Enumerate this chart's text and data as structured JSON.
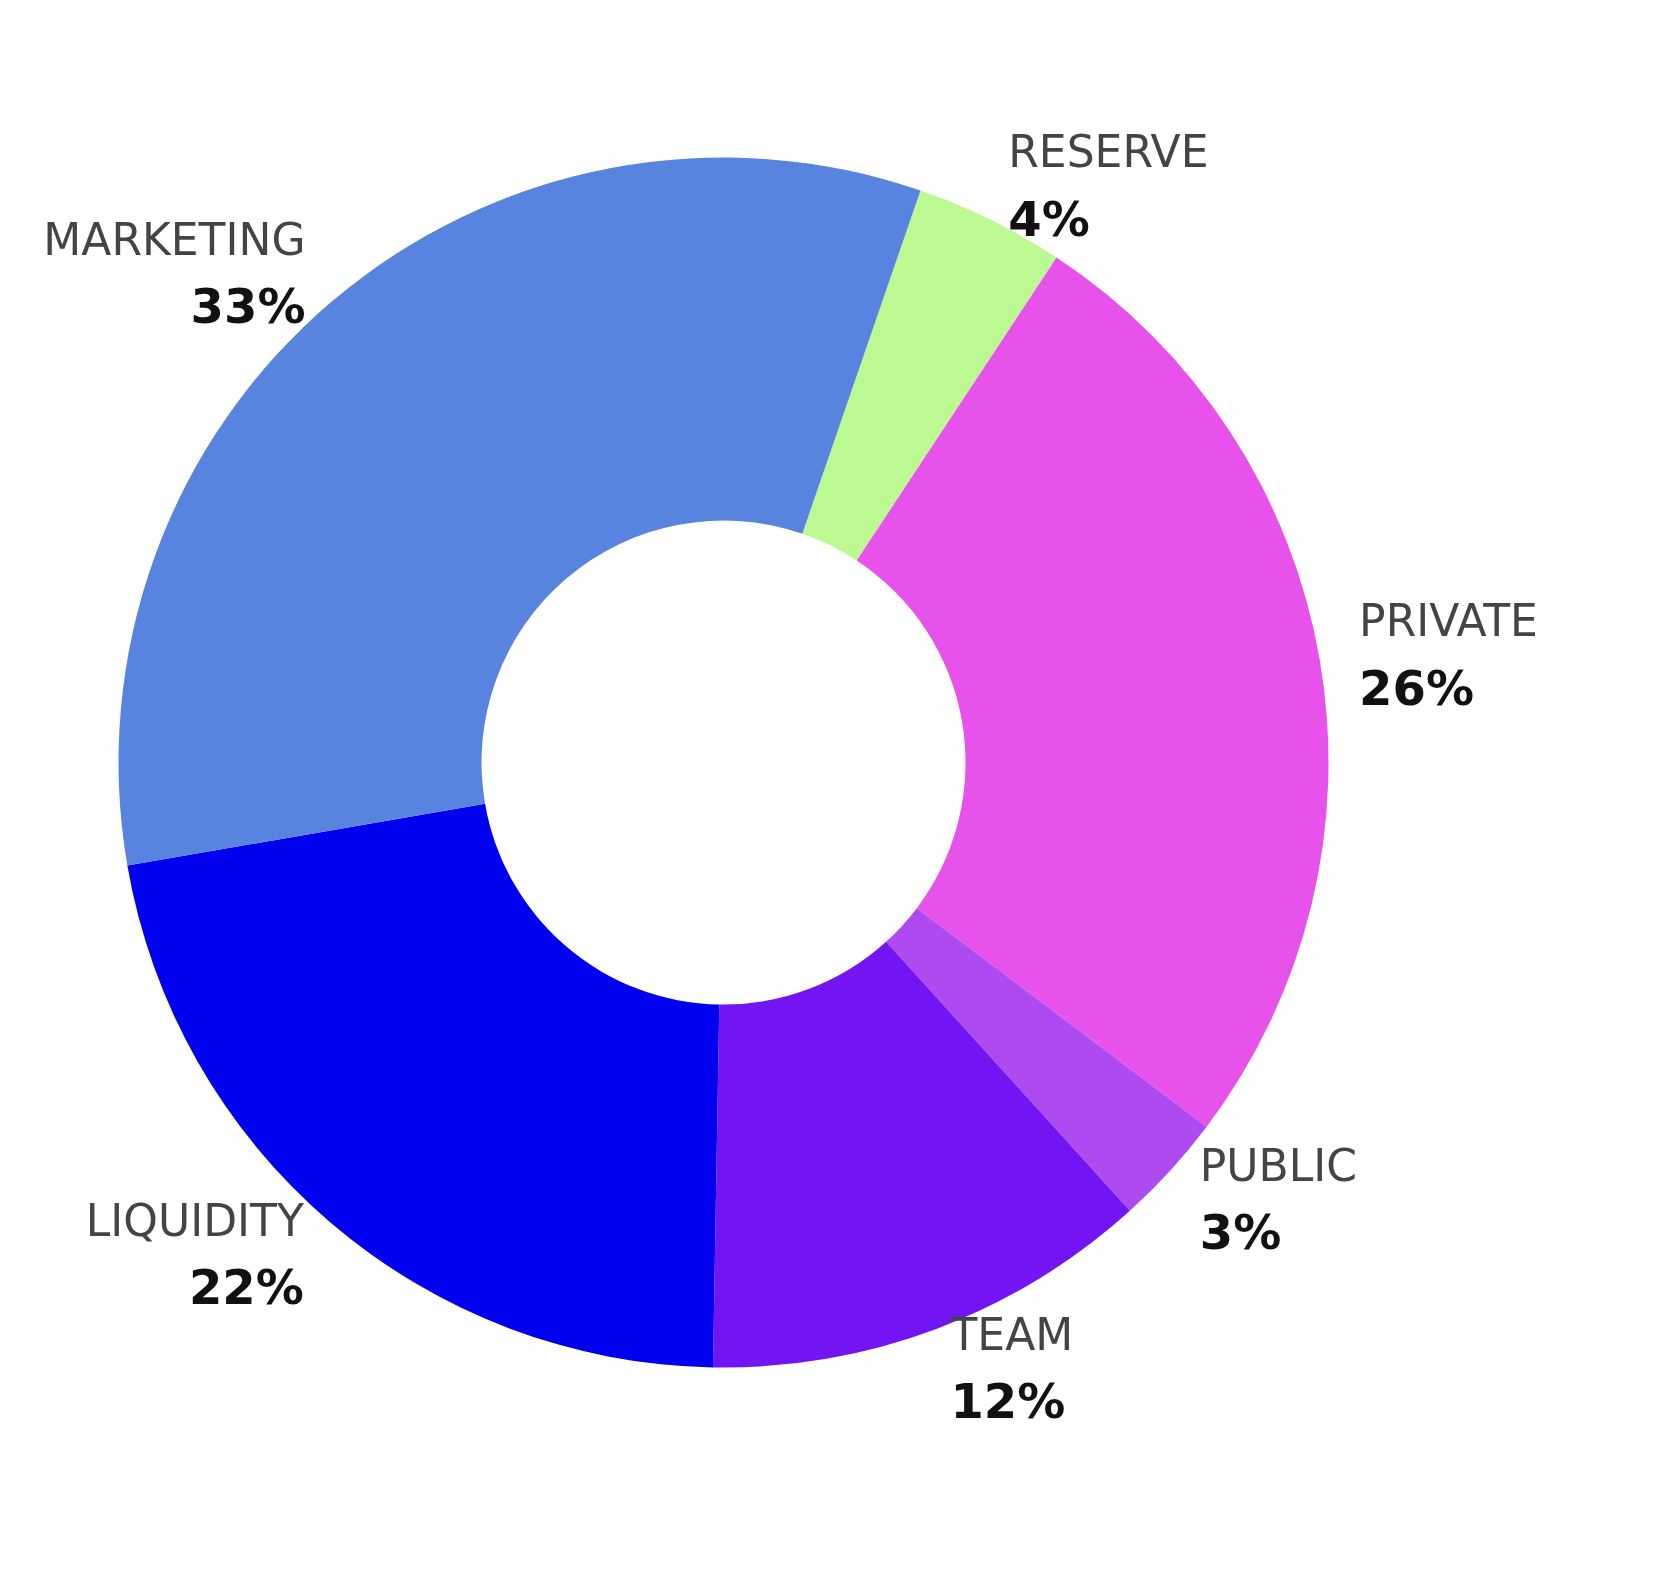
{
  "chart_data": {
    "type": "donut",
    "categories": [
      "RESERVE",
      "PRIVATE",
      "PUBLIC",
      "TEAM",
      "LIQUIDITY",
      "MARKETING"
    ],
    "values": [
      4,
      26,
      3,
      12,
      22,
      33
    ],
    "colors": [
      "#bdf992",
      "#e752eb",
      "#af4af0",
      "#7314f2",
      "#0000ee",
      "#5884df"
    ],
    "value_labels": [
      "4%",
      "26%",
      "3%",
      "12%",
      "22%",
      "33%"
    ]
  }
}
